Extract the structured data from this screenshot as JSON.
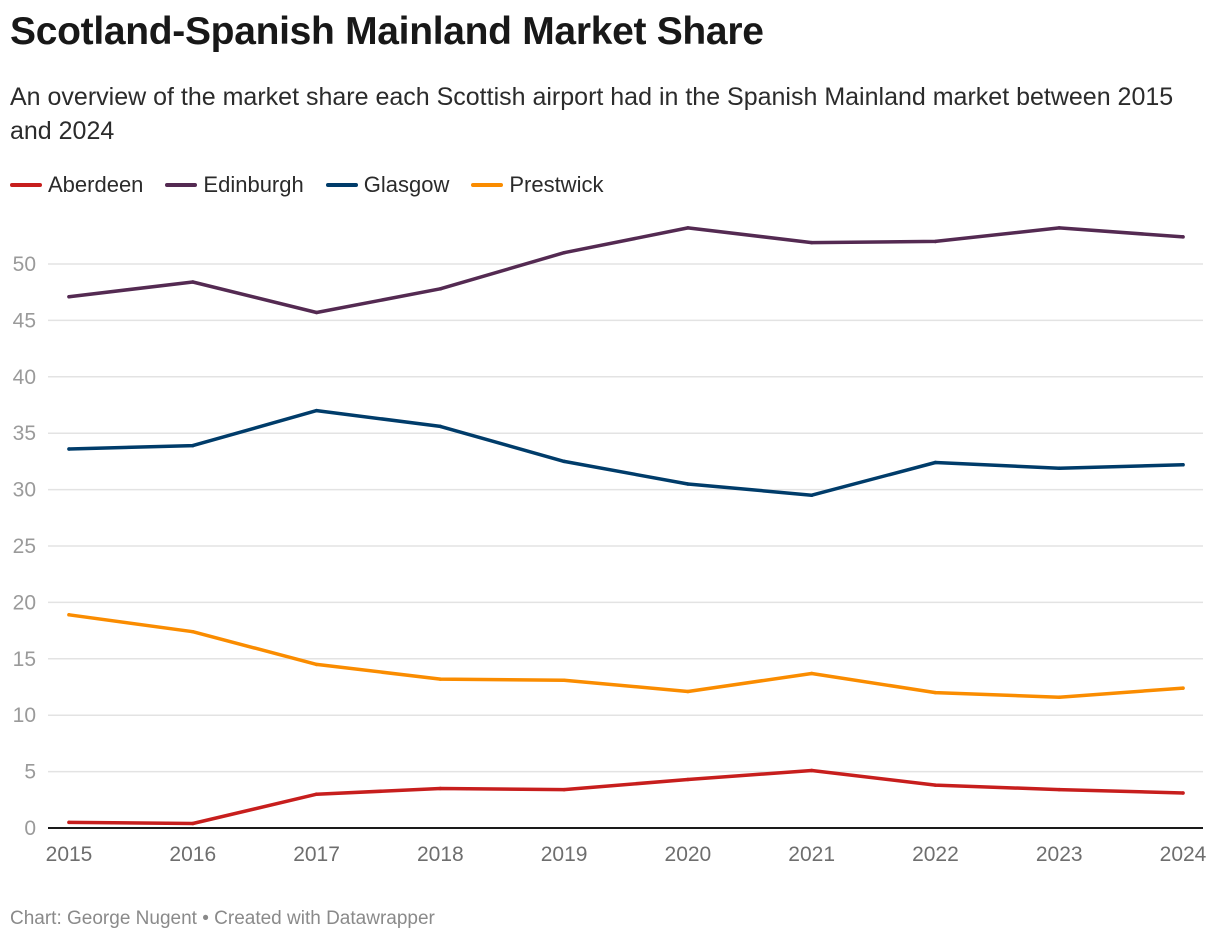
{
  "title": "Scotland-Spanish Mainland Market Share",
  "subtitle": "An overview of the market share each Scottish airport had in the Spanish Mainland market between 2015 and 2024",
  "footer": {
    "text": "Chart: George Nugent • Created with Datawrapper"
  },
  "chart_data": {
    "type": "line",
    "title": "Scotland-Spanish Mainland Market Share",
    "subtitle": "An overview of the market share each Scottish airport had in the Spanish Mainland market between 2015 and 2024",
    "xlabel": "",
    "ylabel": "",
    "x": [
      "2015",
      "2016",
      "2017",
      "2018",
      "2019",
      "2020",
      "2021",
      "2022",
      "2023",
      "2024"
    ],
    "ylim": [
      0,
      53.5
    ],
    "yticks": [
      0,
      5,
      10,
      15,
      20,
      25,
      30,
      35,
      40,
      45,
      50
    ],
    "grid": true,
    "legend_position": "top-left",
    "series": [
      {
        "name": "Aberdeen",
        "color": "#c71e1d",
        "values": [
          0.5,
          0.4,
          3.0,
          3.5,
          3.4,
          4.3,
          5.1,
          3.8,
          3.4,
          3.1
        ]
      },
      {
        "name": "Edinburgh",
        "color": "#542a52",
        "values": [
          47.1,
          48.4,
          45.7,
          47.8,
          51.0,
          53.2,
          51.9,
          52.0,
          53.2,
          52.4
        ]
      },
      {
        "name": "Glasgow",
        "color": "#003c6a",
        "values": [
          33.6,
          33.9,
          37.0,
          35.6,
          32.5,
          30.5,
          29.5,
          32.4,
          31.9,
          32.2
        ]
      },
      {
        "name": "Prestwick",
        "color": "#fa8c00",
        "values": [
          18.9,
          17.4,
          14.5,
          13.2,
          13.1,
          12.1,
          13.7,
          12.0,
          11.6,
          12.4
        ]
      }
    ]
  }
}
